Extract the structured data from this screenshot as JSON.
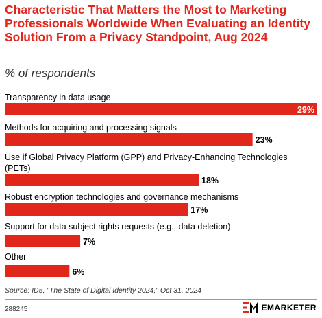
{
  "header": {
    "title": "Characteristic That Matters the Most to Marketing Professionals Worldwide When Evaluating an Identity Solution From a Privacy Standpoint, Aug 2024",
    "subtitle": "% of respondents"
  },
  "chart_data": {
    "type": "bar",
    "orientation": "horizontal",
    "categories": [
      "Transparency in data usage",
      "Methods for acquiring and processing signals",
      "Use if Global Privacy Platform (GPP) and Privacy-Enhancing Technologies (PETs)",
      "Robust encryption technologies and governance mechanisms",
      "Support for data subject rights requests (e.g., data deletion)",
      "Other"
    ],
    "values": [
      29,
      23,
      18,
      17,
      7,
      6
    ],
    "value_labels": [
      "29%",
      "23%",
      "18%",
      "17%",
      "7%",
      "6%"
    ],
    "xlim": [
      0,
      29
    ],
    "bar_color": "#e1261c",
    "grid": false,
    "legend": "none"
  },
  "footer": {
    "source": "Source: ID5, \"The State of Digital Identity 2024,\" Oct 31, 2024",
    "chart_id": "288245",
    "brand": "EMARKETER"
  },
  "colors": {
    "accent": "#e1261c",
    "text": "#000000"
  }
}
